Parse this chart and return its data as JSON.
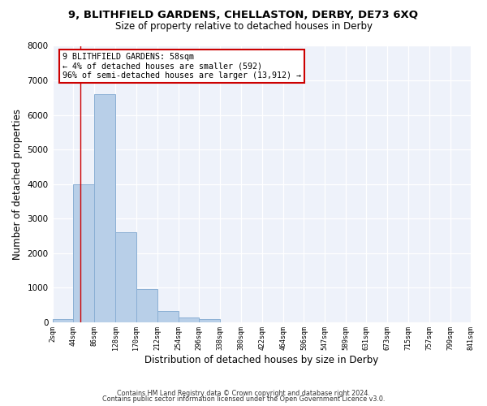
{
  "title1": "9, BLITHFIELD GARDENS, CHELLASTON, DERBY, DE73 6XQ",
  "title2": "Size of property relative to detached houses in Derby",
  "xlabel": "Distribution of detached houses by size in Derby",
  "ylabel": "Number of detached properties",
  "bar_edges": [
    2,
    44,
    86,
    128,
    170,
    212,
    254,
    296,
    338,
    380,
    422,
    464,
    506,
    547,
    589,
    631,
    673,
    715,
    757,
    799,
    841
  ],
  "bar_heights": [
    75,
    4000,
    6600,
    2600,
    950,
    320,
    130,
    80,
    0,
    0,
    0,
    0,
    0,
    0,
    0,
    0,
    0,
    0,
    0,
    0
  ],
  "bar_color": "#b8cfe8",
  "bar_edgecolor": "#8aafd4",
  "property_line_x": 58,
  "property_line_color": "#cc0000",
  "ylim": [
    0,
    8000
  ],
  "yticks": [
    0,
    1000,
    2000,
    3000,
    4000,
    5000,
    6000,
    7000,
    8000
  ],
  "annotation_line1": "9 BLITHFIELD GARDENS: 58sqm",
  "annotation_line2": "← 4% of detached houses are smaller (592)",
  "annotation_line3": "96% of semi-detached houses are larger (13,912) →",
  "annotation_box_color": "#ffffff",
  "annotation_box_edgecolor": "#cc0000",
  "footer1": "Contains HM Land Registry data © Crown copyright and database right 2024.",
  "footer2": "Contains public sector information licensed under the Open Government Licence v3.0.",
  "tick_labels": [
    "2sqm",
    "44sqm",
    "86sqm",
    "128sqm",
    "170sqm",
    "212sqm",
    "254sqm",
    "296sqm",
    "338sqm",
    "380sqm",
    "422sqm",
    "464sqm",
    "506sqm",
    "547sqm",
    "589sqm",
    "631sqm",
    "673sqm",
    "715sqm",
    "757sqm",
    "799sqm",
    "841sqm"
  ],
  "bg_color": "#eef2fa"
}
